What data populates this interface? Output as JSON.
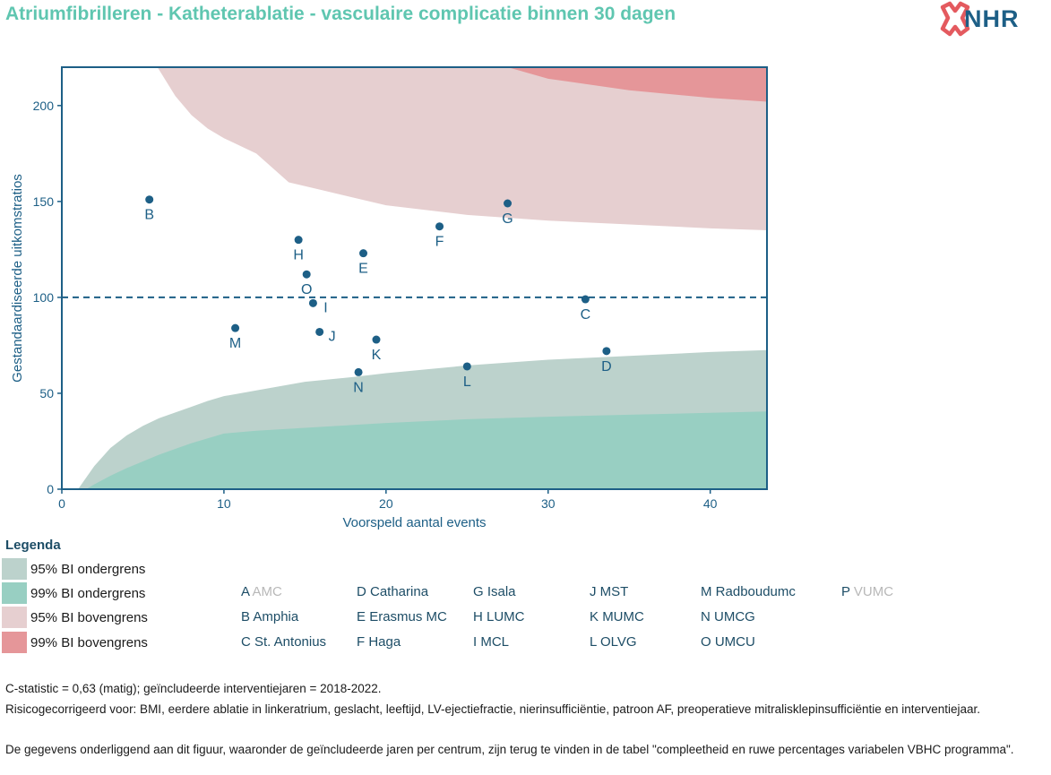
{
  "title": "Atriumfibrilleren - Katheterablatie - vasculaire complicatie binnen 30 dagen",
  "logo": {
    "text": "NHR",
    "icon": "nhr-logo-icon"
  },
  "colors": {
    "accent": "#5fc6b0",
    "navy": "#1d5f86",
    "ci95_lower": "#bcd2cc",
    "ci99_lower": "#98cfc2",
    "ci95_upper": "#e6cfd0",
    "ci99_upper": "#e59699"
  },
  "chart_data": {
    "type": "scatter",
    "xlabel": "Voorspeld aantal events",
    "ylabel": "Gestandaardiseerde uitkomstratios",
    "xlim": [
      0,
      43.5
    ],
    "ylim": [
      0,
      220
    ],
    "xticks": [
      0,
      10,
      20,
      30,
      40
    ],
    "yticks": [
      0,
      50,
      100,
      150,
      200
    ],
    "reference_line": 100,
    "bands": {
      "x": [
        1,
        1.5,
        2,
        3,
        4,
        5,
        6,
        7,
        8,
        9,
        10,
        12,
        15,
        18,
        20,
        25,
        30,
        35,
        40,
        43.5
      ],
      "lower95": [
        0,
        6,
        12,
        21.5,
        28,
        33,
        37,
        40,
        43,
        46,
        48.5,
        51.5,
        56,
        58.5,
        60.5,
        64.5,
        67.5,
        69.5,
        71.5,
        72.5
      ],
      "lower99": [
        0,
        0,
        2.5,
        7,
        11,
        14.5,
        18,
        21,
        24,
        26.5,
        29,
        30.5,
        32,
        33.5,
        34.5,
        36.5,
        37.8,
        38.8,
        39.8,
        40.5
      ],
      "upper95_x": [
        5.9,
        7,
        8,
        9,
        10,
        12,
        14,
        16,
        18,
        20,
        25,
        30,
        35,
        40,
        43.5
      ],
      "upper95": [
        220,
        205,
        195,
        188,
        183,
        175,
        160,
        156,
        152,
        148,
        143,
        140,
        138,
        136,
        135
      ],
      "upper99_x": [
        27.5,
        30,
        35,
        40,
        43.5
      ],
      "upper99": [
        220,
        214,
        208,
        204,
        202
      ]
    },
    "points": [
      {
        "label": "B",
        "x": 5.4,
        "y": 151
      },
      {
        "label": "H",
        "x": 14.6,
        "y": 130
      },
      {
        "label": "O",
        "x": 15.1,
        "y": 112
      },
      {
        "label": "I",
        "x": 15.5,
        "y": 97
      },
      {
        "label": "J",
        "x": 15.9,
        "y": 82
      },
      {
        "label": "M",
        "x": 10.7,
        "y": 84
      },
      {
        "label": "E",
        "x": 18.6,
        "y": 123
      },
      {
        "label": "K",
        "x": 19.4,
        "y": 78
      },
      {
        "label": "N",
        "x": 18.3,
        "y": 61
      },
      {
        "label": "F",
        "x": 23.3,
        "y": 137
      },
      {
        "label": "G",
        "x": 27.5,
        "y": 149
      },
      {
        "label": "L",
        "x": 25.0,
        "y": 64
      },
      {
        "label": "C",
        "x": 32.3,
        "y": 99
      },
      {
        "label": "D",
        "x": 33.6,
        "y": 72
      }
    ]
  },
  "legend": {
    "title": "Legenda",
    "items": [
      {
        "label": "95% BI ondergrens",
        "color": "#bcd2cc"
      },
      {
        "label": "99% BI ondergrens",
        "color": "#98cfc2"
      },
      {
        "label": "95% BI bovengrens",
        "color": "#e6cfd0"
      },
      {
        "label": "99% BI bovengrens",
        "color": "#e59699"
      }
    ]
  },
  "centers": [
    {
      "letter": "A",
      "name": "AMC",
      "excluded": true
    },
    {
      "letter": "B",
      "name": "Amphia",
      "excluded": false
    },
    {
      "letter": "C",
      "name": "St. Antonius",
      "excluded": false
    },
    {
      "letter": "D",
      "name": "Catharina",
      "excluded": false
    },
    {
      "letter": "E",
      "name": "Erasmus MC",
      "excluded": false
    },
    {
      "letter": "F",
      "name": "Haga",
      "excluded": false
    },
    {
      "letter": "G",
      "name": "Isala",
      "excluded": false
    },
    {
      "letter": "H",
      "name": "LUMC",
      "excluded": false
    },
    {
      "letter": "I",
      "name": "MCL",
      "excluded": false
    },
    {
      "letter": "J",
      "name": "MST",
      "excluded": false
    },
    {
      "letter": "K",
      "name": "MUMC",
      "excluded": false
    },
    {
      "letter": "L",
      "name": "OLVG",
      "excluded": false
    },
    {
      "letter": "M",
      "name": "Radboudumc",
      "excluded": false
    },
    {
      "letter": "N",
      "name": "UMCG",
      "excluded": false
    },
    {
      "letter": "O",
      "name": "UMCU",
      "excluded": false
    },
    {
      "letter": "P",
      "name": "VUMC",
      "excluded": true
    }
  ],
  "footnotes": {
    "line1": "C-statistic =  0,63 (matig); geïncludeerde interventiejaren = 2018-2022.",
    "line2": "Risicogecorrigeerd voor: BMI, eerdere ablatie in linkeratrium, geslacht, leeftijd, LV-ejectiefractie, nierinsufficiëntie, patroon AF, preoperatieve mitralisklepinsufficiëntie en interventiejaar.",
    "line3": "De gegevens onderliggend aan dit figuur, waaronder de geïncludeerde jaren per centrum, zijn terug te vinden in de tabel \"compleetheid en ruwe percentages variabelen VBHC programma\"."
  }
}
